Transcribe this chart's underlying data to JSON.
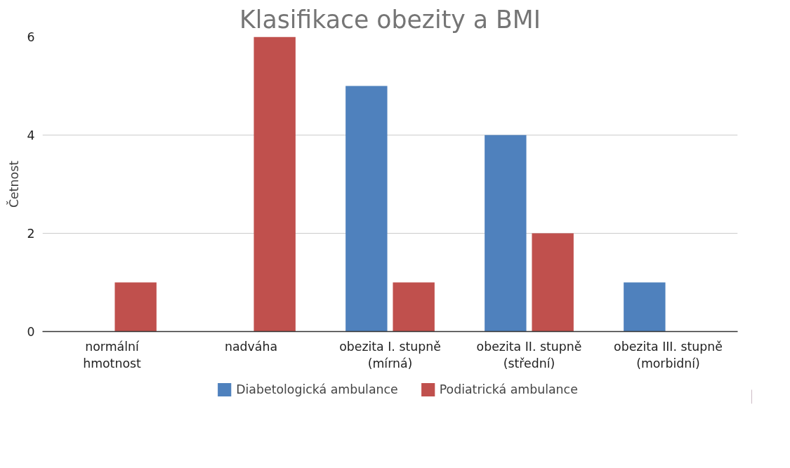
{
  "chart_data": {
    "type": "bar",
    "title": "Klasifikace obezity a BMI",
    "ylabel": "Četnost",
    "categories": [
      "normální hmotnost",
      "nadváha",
      "obezita I. stupně (mírná)",
      "obezita II. stupně (střední)",
      "obezita III. stupně (morbidní)"
    ],
    "series": [
      {
        "name": "Diabetologická ambulance",
        "color": "#4f81bd",
        "values": [
          0,
          0,
          5,
          4,
          1
        ]
      },
      {
        "name": "Podiatrická ambulance",
        "color": "#c0504d",
        "values": [
          1,
          6,
          1,
          2,
          0
        ]
      }
    ],
    "ylim": [
      0,
      6
    ],
    "yticks": [
      0,
      2,
      4,
      6
    ],
    "grid": "y",
    "legend": "bottom"
  }
}
